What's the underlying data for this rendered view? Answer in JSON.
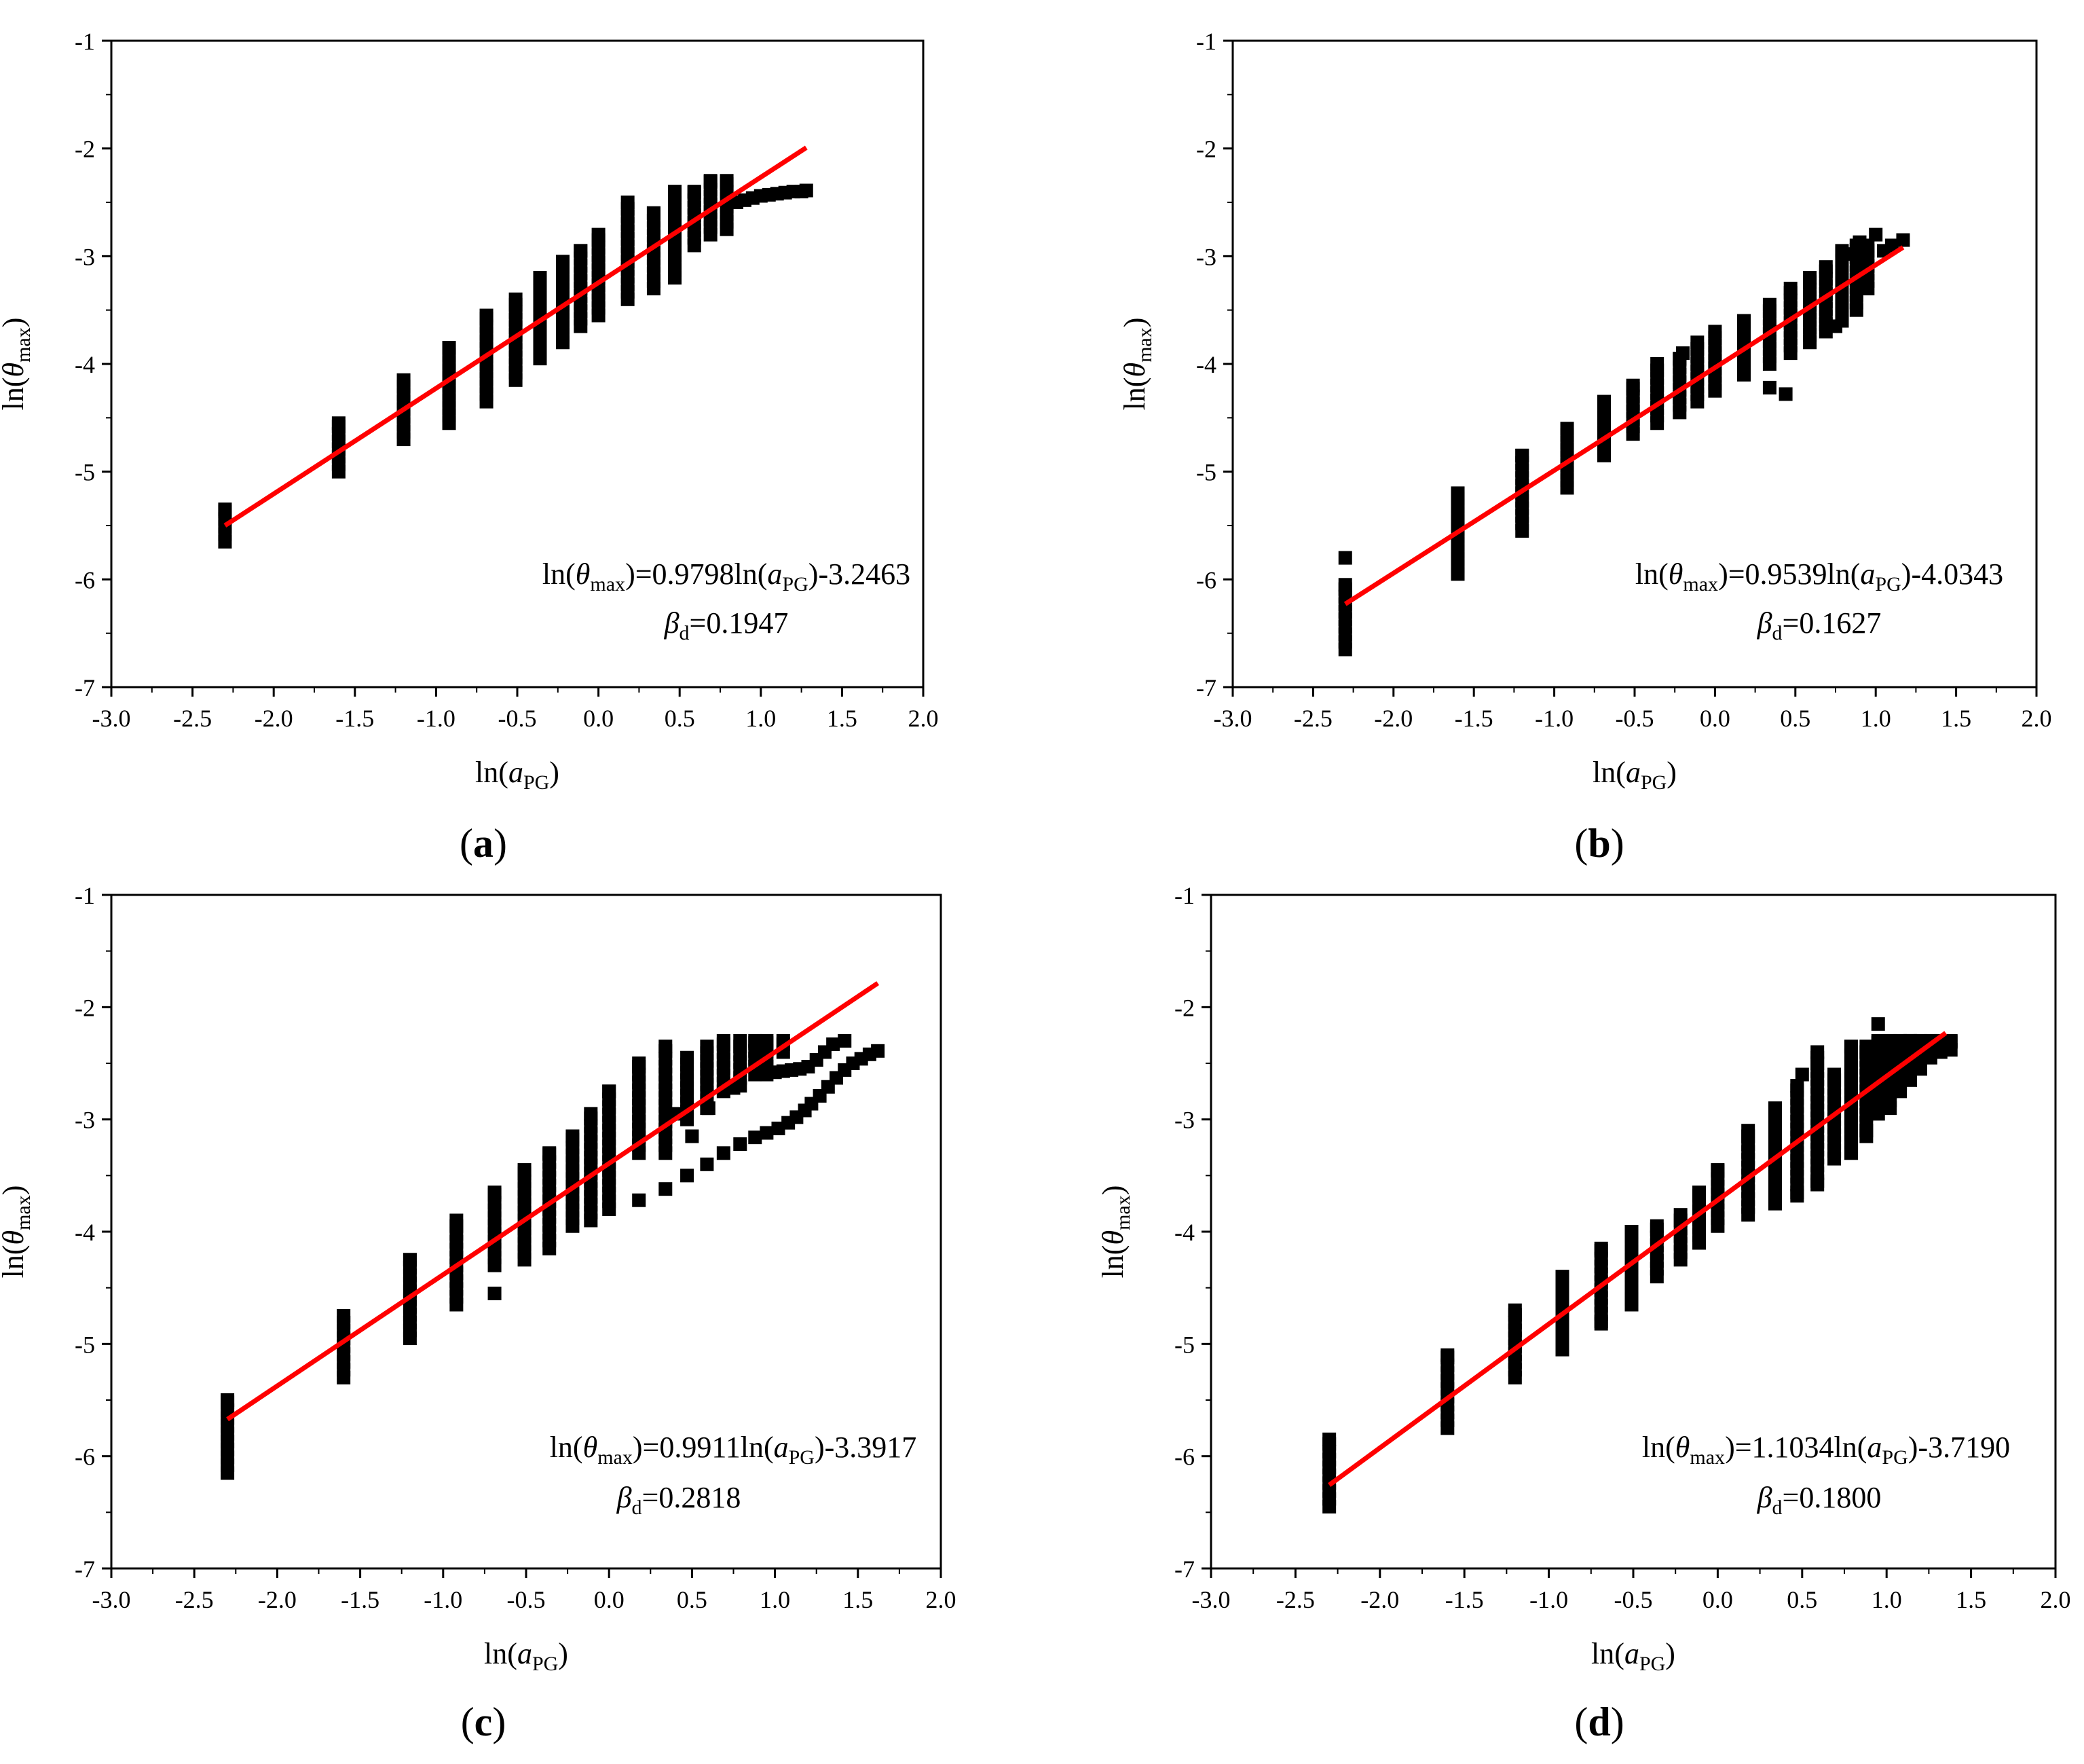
{
  "figure": {
    "panels": [
      {
        "id": "a",
        "label": "a",
        "equation_coef": "0.9798",
        "equation_const": "-3.2463",
        "beta_value": "0.1947"
      },
      {
        "id": "b",
        "label": "b",
        "equation_coef": "0.9539",
        "equation_const": "-4.0343",
        "beta_value": "0.1627"
      },
      {
        "id": "c",
        "label": "c",
        "equation_coef": "0.9911",
        "equation_const": "-3.3917",
        "beta_value": "0.2818"
      },
      {
        "id": "d",
        "label": "d",
        "equation_coef": "1.1034",
        "equation_const": "-3.7190",
        "beta_value": "0.1800"
      }
    ],
    "x_ticks": [
      "-3.0",
      "-2.5",
      "-2.0",
      "-1.5",
      "-1.0",
      "-0.5",
      "0.0",
      "0.5",
      "1.0",
      "1.5",
      "2.0"
    ],
    "y_ticks": [
      "-1",
      "-2",
      "-3",
      "-4",
      "-5",
      "-6",
      "-7"
    ],
    "xlabel_prefix": "ln(",
    "xlabel_var": "a",
    "xlabel_sub": "PG",
    "xlabel_suffix": ")",
    "ylabel_prefix": "ln(",
    "ylabel_var": "θ",
    "ylabel_sub": "max",
    "ylabel_suffix": ")",
    "eq_ln_open": "ln(",
    "eq_theta": "θ",
    "eq_max": "max",
    "eq_mid": ")=",
    "eq_ln2": "ln(",
    "eq_a": "a",
    "eq_pg": "PG",
    "eq_close": ")",
    "beta_symbol": "β",
    "beta_sub": "d",
    "beta_eq": "=",
    "colors": {
      "fit_line": "#ff0000",
      "markers": "#000000",
      "axes": "#000000"
    }
  },
  "chart_data": [
    {
      "type": "scatter",
      "title": "(a)",
      "xlabel": "ln(aPG)",
      "ylabel": "ln(θmax)",
      "xlim": [
        -3.0,
        2.0
      ],
      "ylim": [
        -7,
        -1
      ],
      "fit": {
        "slope": 0.9798,
        "intercept": -3.2463,
        "x_range": [
          -2.3,
          1.28
        ],
        "beta_d": 0.1947
      },
      "columns": [
        {
          "x": -2.3,
          "y_min": -5.65,
          "y_max": -5.35
        },
        {
          "x": -1.6,
          "y_min": -5.0,
          "y_max": -4.55
        },
        {
          "x": -1.2,
          "y_min": -4.7,
          "y_max": -4.15
        },
        {
          "x": -0.92,
          "y_min": -4.55,
          "y_max": -3.85
        },
        {
          "x": -0.69,
          "y_min": -4.35,
          "y_max": -3.55
        },
        {
          "x": -0.51,
          "y_min": -4.15,
          "y_max": -3.4
        },
        {
          "x": -0.36,
          "y_min": -3.95,
          "y_max": -3.2
        },
        {
          "x": -0.22,
          "y_min": -3.8,
          "y_max": -3.05
        },
        {
          "x": -0.11,
          "y_min": -3.65,
          "y_max": -2.95
        },
        {
          "x": 0.0,
          "y_min": -3.55,
          "y_max": -2.8
        },
        {
          "x": 0.18,
          "y_min": -3.4,
          "y_max": -2.5
        },
        {
          "x": 0.34,
          "y_min": -3.3,
          "y_max": -2.6
        },
        {
          "x": 0.47,
          "y_min": -3.2,
          "y_max": -2.4
        },
        {
          "x": 0.59,
          "y_min": -2.9,
          "y_max": -2.4
        },
        {
          "x": 0.69,
          "y_min": -2.8,
          "y_max": -2.3
        },
        {
          "x": 0.79,
          "y_min": -2.75,
          "y_max": -2.3
        }
      ],
      "points": [
        [
          0.85,
          -2.5
        ],
        [
          0.9,
          -2.48
        ],
        [
          0.95,
          -2.46
        ],
        [
          1.0,
          -2.44
        ],
        [
          1.05,
          -2.43
        ],
        [
          1.1,
          -2.42
        ],
        [
          1.15,
          -2.41
        ],
        [
          1.2,
          -2.4
        ],
        [
          1.25,
          -2.4
        ],
        [
          1.28,
          -2.39
        ]
      ]
    },
    {
      "type": "scatter",
      "title": "(b)",
      "xlabel": "ln(aPG)",
      "ylabel": "ln(θmax)",
      "xlim": [
        -3.0,
        2.0
      ],
      "ylim": [
        -7,
        -1
      ],
      "fit": {
        "slope": 0.9539,
        "intercept": -4.0343,
        "x_range": [
          -2.3,
          1.17
        ],
        "beta_d": 0.1627
      },
      "columns": [
        {
          "x": -2.3,
          "y_min": -6.65,
          "y_max": -6.05
        },
        {
          "x": -1.6,
          "y_min": -5.95,
          "y_max": -5.2
        },
        {
          "x": -1.2,
          "y_min": -5.55,
          "y_max": -4.85
        },
        {
          "x": -0.92,
          "y_min": -5.15,
          "y_max": -4.6
        },
        {
          "x": -0.69,
          "y_min": -4.85,
          "y_max": -4.35
        },
        {
          "x": -0.51,
          "y_min": -4.65,
          "y_max": -4.2
        },
        {
          "x": -0.36,
          "y_min": -4.55,
          "y_max": -4.0
        },
        {
          "x": -0.22,
          "y_min": -4.45,
          "y_max": -3.95
        },
        {
          "x": -0.11,
          "y_min": -4.35,
          "y_max": -3.8
        },
        {
          "x": 0.0,
          "y_min": -4.25,
          "y_max": -3.7
        },
        {
          "x": 0.18,
          "y_min": -4.1,
          "y_max": -3.6
        },
        {
          "x": 0.34,
          "y_min": -4.0,
          "y_max": -3.45
        },
        {
          "x": 0.47,
          "y_min": -3.9,
          "y_max": -3.3
        },
        {
          "x": 0.59,
          "y_min": -3.8,
          "y_max": -3.2
        },
        {
          "x": 0.69,
          "y_min": -3.7,
          "y_max": -3.1
        },
        {
          "x": 0.79,
          "y_min": -3.6,
          "y_max": -2.95
        },
        {
          "x": 0.88,
          "y_min": -3.5,
          "y_max": -2.9
        },
        {
          "x": 0.95,
          "y_min": -3.3,
          "y_max": -2.9
        }
      ],
      "points": [
        [
          -2.3,
          -5.8
        ],
        [
          -0.2,
          -3.9
        ],
        [
          0.44,
          -4.28
        ],
        [
          0.34,
          -4.22
        ],
        [
          0.75,
          -3.65
        ],
        [
          1.0,
          -2.8
        ],
        [
          1.05,
          -2.95
        ],
        [
          1.1,
          -2.9
        ],
        [
          1.17,
          -2.85
        ],
        [
          0.8,
          -2.98
        ],
        [
          0.9,
          -2.87
        ]
      ]
    },
    {
      "type": "scatter",
      "title": "(c)",
      "xlabel": "ln(aPG)",
      "ylabel": "ln(θmax)",
      "xlim": [
        -3.0,
        2.0
      ],
      "ylim": [
        -7,
        -1
      ],
      "fit": {
        "slope": 0.9911,
        "intercept": -3.3917,
        "x_range": [
          -2.3,
          1.62
        ],
        "beta_d": 0.2818
      },
      "columns": [
        {
          "x": -2.3,
          "y_min": -6.15,
          "y_max": -5.5
        },
        {
          "x": -1.6,
          "y_min": -5.3,
          "y_max": -4.75
        },
        {
          "x": -1.2,
          "y_min": -4.95,
          "y_max": -4.25
        },
        {
          "x": -0.92,
          "y_min": -4.65,
          "y_max": -3.9
        },
        {
          "x": -0.69,
          "y_min": -4.3,
          "y_max": -3.65
        },
        {
          "x": -0.51,
          "y_min": -4.25,
          "y_max": -3.45
        },
        {
          "x": -0.36,
          "y_min": -4.15,
          "y_max": -3.3
        },
        {
          "x": -0.22,
          "y_min": -3.95,
          "y_max": -3.15
        },
        {
          "x": -0.11,
          "y_min": -3.9,
          "y_max": -2.95
        },
        {
          "x": 0.0,
          "y_min": -3.8,
          "y_max": -2.75
        },
        {
          "x": 0.18,
          "y_min": -3.3,
          "y_max": -2.5
        },
        {
          "x": 0.34,
          "y_min": -3.3,
          "y_max": -2.35
        },
        {
          "x": 0.47,
          "y_min": -3.0,
          "y_max": -2.45
        },
        {
          "x": 0.59,
          "y_min": -2.9,
          "y_max": -2.35
        },
        {
          "x": 0.69,
          "y_min": -2.75,
          "y_max": -2.3
        },
        {
          "x": 0.79,
          "y_min": -2.7,
          "y_max": -2.3
        },
        {
          "x": 0.88,
          "y_min": -2.6,
          "y_max": -2.3
        },
        {
          "x": 0.95,
          "y_min": -2.6,
          "y_max": -2.3
        },
        {
          "x": 1.05,
          "y_min": -2.4,
          "y_max": -2.3
        }
      ],
      "points": [
        [
          -0.69,
          -4.55
        ],
        [
          0.18,
          -3.72
        ],
        [
          0.34,
          -3.62
        ],
        [
          0.47,
          -3.5
        ],
        [
          0.59,
          -3.4
        ],
        [
          0.69,
          -3.3
        ],
        [
          0.79,
          -3.22
        ],
        [
          0.88,
          -3.16
        ],
        [
          0.95,
          -3.12
        ],
        [
          1.02,
          -3.08
        ],
        [
          1.08,
          -3.03
        ],
        [
          1.13,
          -2.98
        ],
        [
          1.18,
          -2.92
        ],
        [
          1.22,
          -2.86
        ],
        [
          1.27,
          -2.79
        ],
        [
          1.32,
          -2.71
        ],
        [
          1.37,
          -2.63
        ],
        [
          1.42,
          -2.56
        ],
        [
          1.47,
          -2.5
        ],
        [
          1.52,
          -2.46
        ],
        [
          1.57,
          -2.42
        ],
        [
          1.62,
          -2.39
        ],
        [
          1.0,
          -2.58
        ],
        [
          1.05,
          -2.57
        ],
        [
          1.1,
          -2.56
        ],
        [
          1.15,
          -2.55
        ],
        [
          1.2,
          -2.53
        ],
        [
          1.25,
          -2.47
        ],
        [
          1.3,
          -2.4
        ],
        [
          1.35,
          -2.33
        ],
        [
          1.42,
          -2.3
        ],
        [
          0.5,
          -3.15
        ],
        [
          0.6,
          -2.9
        ],
        [
          0.4,
          -2.95
        ],
        [
          0.75,
          -2.72
        ]
      ]
    },
    {
      "type": "scatter",
      "title": "(d)",
      "xlabel": "ln(aPG)",
      "ylabel": "ln(θmax)",
      "xlim": [
        -3.0,
        2.0
      ],
      "ylim": [
        -7,
        -1
      ],
      "fit": {
        "slope": 1.1034,
        "intercept": -3.719,
        "x_range": [
          -2.3,
          1.35
        ],
        "beta_d": 0.18
      },
      "columns": [
        {
          "x": -2.3,
          "y_min": -6.45,
          "y_max": -5.85
        },
        {
          "x": -1.6,
          "y_min": -5.75,
          "y_max": -5.1
        },
        {
          "x": -1.2,
          "y_min": -5.3,
          "y_max": -4.7
        },
        {
          "x": -0.92,
          "y_min": -5.05,
          "y_max": -4.4
        },
        {
          "x": -0.69,
          "y_min": -4.8,
          "y_max": -4.15
        },
        {
          "x": -0.51,
          "y_min": -4.6,
          "y_max": -4.0
        },
        {
          "x": -0.36,
          "y_min": -4.4,
          "y_max": -3.95
        },
        {
          "x": -0.22,
          "y_min": -4.25,
          "y_max": -3.85
        },
        {
          "x": -0.11,
          "y_min": -4.1,
          "y_max": -3.65
        },
        {
          "x": 0.0,
          "y_min": -3.95,
          "y_max": -3.45
        },
        {
          "x": 0.18,
          "y_min": -3.85,
          "y_max": -3.1
        },
        {
          "x": 0.34,
          "y_min": -3.75,
          "y_max": -2.9
        },
        {
          "x": 0.47,
          "y_min": -3.65,
          "y_max": -2.7
        },
        {
          "x": 0.59,
          "y_min": -3.55,
          "y_max": -2.45
        },
        {
          "x": 0.69,
          "y_min": -3.35,
          "y_max": -2.6
        },
        {
          "x": 0.79,
          "y_min": -3.2,
          "y_max": -2.35
        },
        {
          "x": 0.88,
          "y_min": -3.1,
          "y_max": -2.35
        },
        {
          "x": 0.95,
          "y_min": -2.95,
          "y_max": -2.3
        },
        {
          "x": 1.02,
          "y_min": -2.9,
          "y_max": -2.3
        },
        {
          "x": 1.08,
          "y_min": -2.75,
          "y_max": -2.3
        },
        {
          "x": 1.14,
          "y_min": -2.65,
          "y_max": -2.3
        },
        {
          "x": 1.2,
          "y_min": -2.55,
          "y_max": -2.3
        },
        {
          "x": 1.26,
          "y_min": -2.45,
          "y_max": -2.3
        },
        {
          "x": 1.32,
          "y_min": -2.4,
          "y_max": -2.3
        },
        {
          "x": 1.38,
          "y_min": -2.38,
          "y_max": -2.3
        }
      ],
      "points": [
        [
          0.95,
          -2.15
        ],
        [
          0.5,
          -2.6
        ],
        [
          0.59,
          -2.4
        ],
        [
          0.47,
          -3.68
        ],
        [
          0.59,
          -3.58
        ],
        [
          -0.69,
          -4.82
        ],
        [
          -0.51,
          -4.65
        ],
        [
          0.79,
          -3.3
        ],
        [
          0.88,
          -3.15
        ]
      ]
    }
  ]
}
